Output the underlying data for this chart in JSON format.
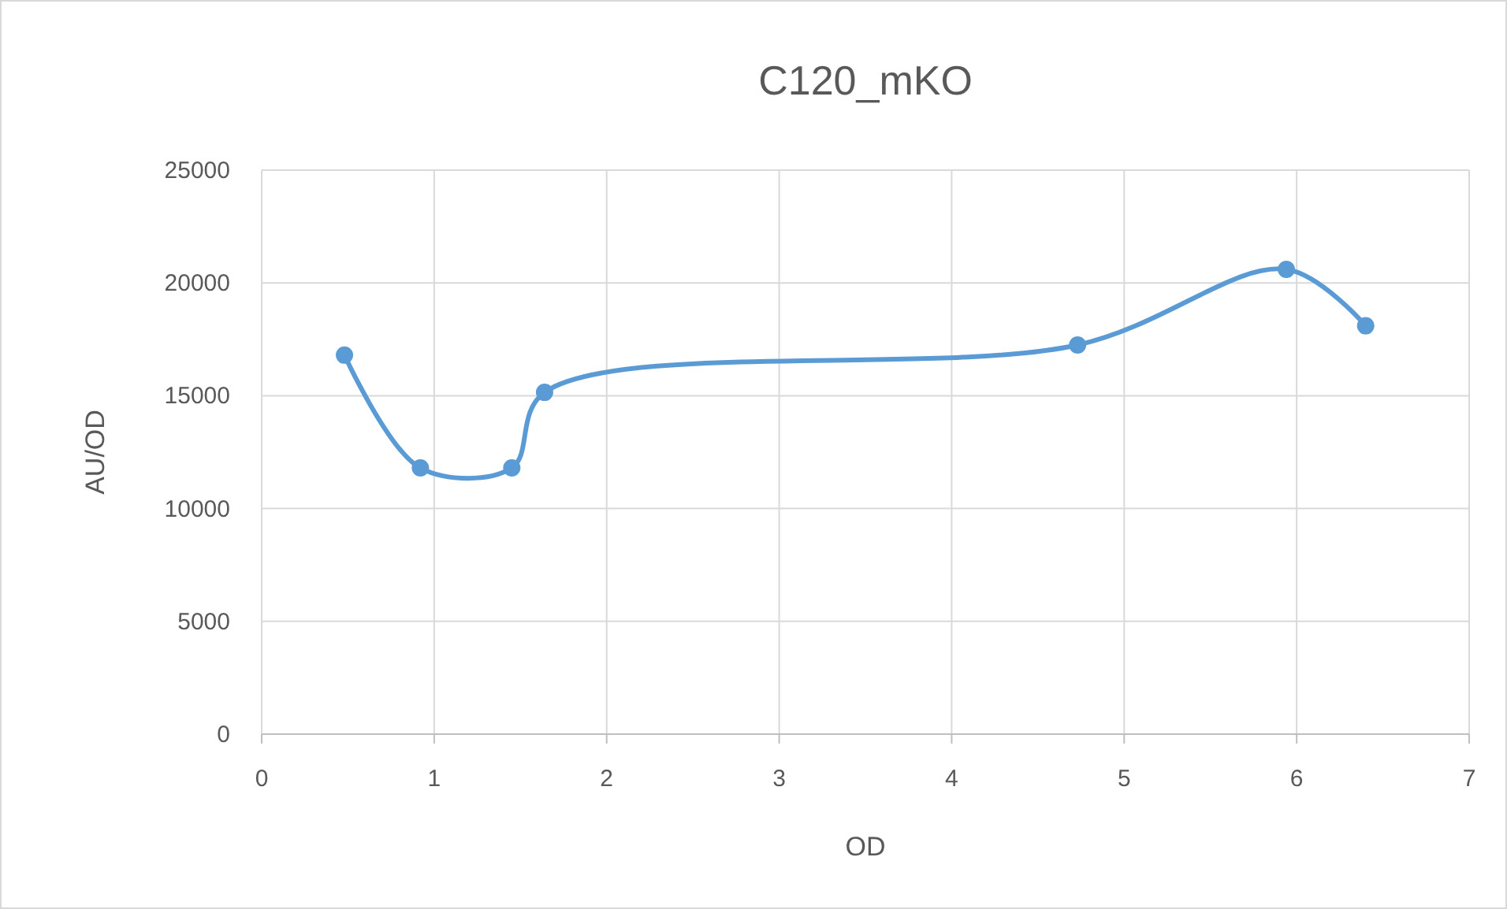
{
  "chart_data": {
    "type": "line",
    "title": "C120_mKO",
    "xlabel": "OD",
    "ylabel": "AU/OD",
    "x": [
      0.48,
      0.92,
      1.45,
      1.64,
      4.73,
      5.94,
      6.4
    ],
    "series": [
      {
        "color": "#5b9bd5",
        "values": [
          16800,
          11800,
          11800,
          15150,
          17250,
          20600,
          18100
        ]
      }
    ],
    "xlim": [
      0,
      7
    ],
    "xticks": [
      0,
      1,
      2,
      3,
      4,
      5,
      6,
      7
    ],
    "ylim": [
      0,
      25000
    ],
    "yticks": [
      0,
      5000,
      10000,
      15000,
      20000,
      25000
    ],
    "grid": true,
    "marker": "circle",
    "line_style": "solid"
  }
}
